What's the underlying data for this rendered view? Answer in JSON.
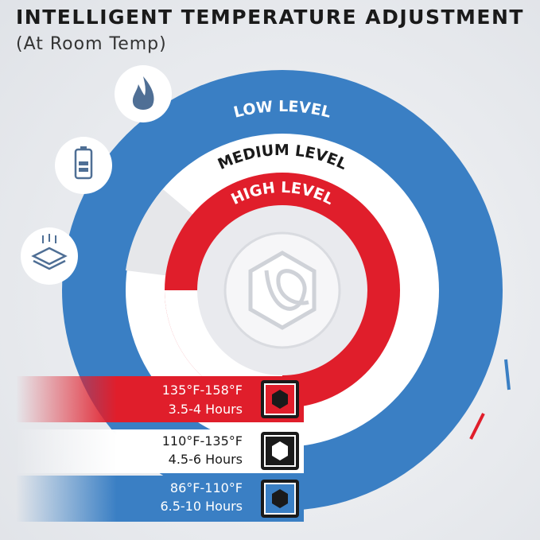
{
  "header": {
    "title": "INTELLIGENT TEMPERATURE ADJUSTMENT",
    "subtitle": "(At Room Temp)"
  },
  "rings": [
    "LOW LEVEL",
    "MEDIUM LEVEL",
    "HIGH LEVEL"
  ],
  "levels": [
    {
      "range": "135°F-158°F",
      "time": "3.5-4 Hours"
    },
    {
      "range": "110°F-135°F",
      "time": "4.5-6 Hours"
    },
    {
      "range": "86°F-110°F",
      "time": "6.5-10 Hours"
    }
  ]
}
